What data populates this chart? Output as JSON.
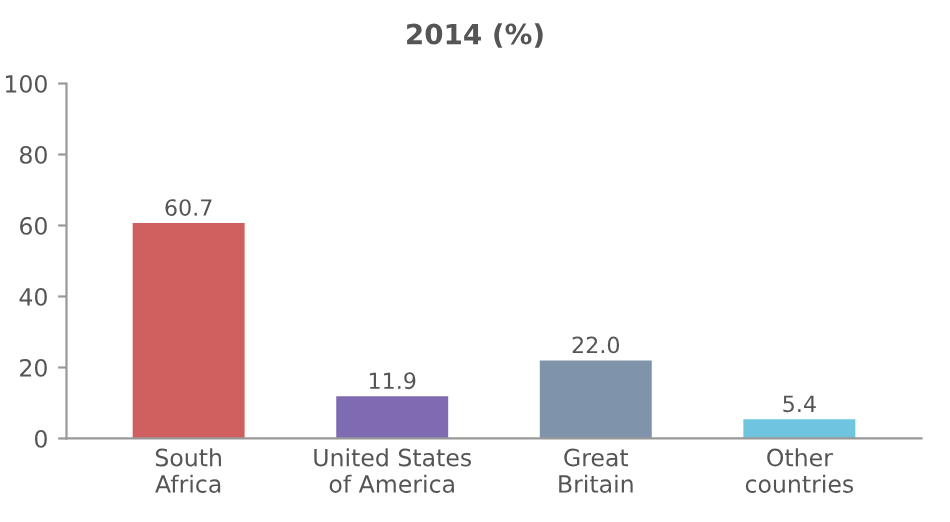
{
  "chart_data": {
    "type": "bar",
    "title": "2014 (%)",
    "categories": [
      "South\nAfrica",
      "United States\nof America",
      "Great\nBritain",
      "Other\ncountries"
    ],
    "values": [
      60.7,
      11.9,
      22.0,
      5.4
    ],
    "colors": [
      "#d0605f",
      "#7f6bb1",
      "#7f93aa",
      "#6fc4df"
    ],
    "value_labels": [
      "60.7",
      "11.9",
      "22.0",
      "5.4"
    ],
    "ylim": [
      0,
      100
    ],
    "yticks": [
      0,
      20,
      40,
      60,
      80,
      100
    ],
    "grid": false,
    "legend": false
  }
}
